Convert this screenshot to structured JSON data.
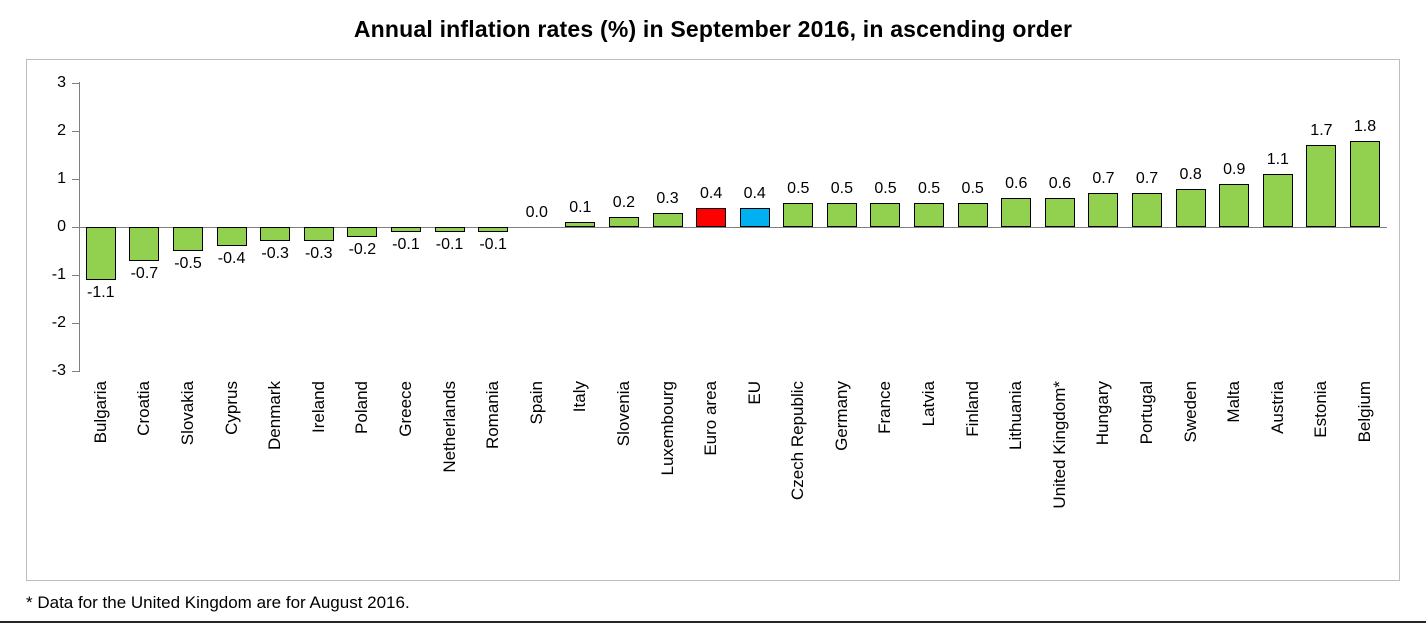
{
  "chart_data": {
    "type": "bar",
    "title": "Annual inflation rates (%) in September 2016, in ascending order",
    "categories": [
      "Bulgaria",
      "Croatia",
      "Slovakia",
      "Cyprus",
      "Denmark",
      "Ireland",
      "Poland",
      "Greece",
      "Netherlands",
      "Romania",
      "Spain",
      "Italy",
      "Slovenia",
      "Luxembourg",
      "Euro area",
      "EU",
      "Czech Republic",
      "Germany",
      "France",
      "Latvia",
      "Finland",
      "Lithuania",
      "United Kingdom*",
      "Hungary",
      "Portugal",
      "Sweden",
      "Malta",
      "Austria",
      "Estonia",
      "Belgium"
    ],
    "values": [
      -1.1,
      -0.7,
      -0.5,
      -0.4,
      -0.3,
      -0.3,
      -0.2,
      -0.1,
      -0.1,
      -0.1,
      0.0,
      0.1,
      0.2,
      0.3,
      0.4,
      0.4,
      0.5,
      0.5,
      0.5,
      0.5,
      0.5,
      0.6,
      0.6,
      0.7,
      0.7,
      0.8,
      0.9,
      1.1,
      1.7,
      1.8
    ],
    "bar_colors": {
      "default": "#92d050",
      "Euro area": "#ff0000",
      "EU": "#00b0f0"
    },
    "axis_color": "#7f7f7f",
    "bar_border_color": "#000000",
    "xlabel": "",
    "ylabel": "",
    "ylim": [
      -3,
      3
    ],
    "yticks": [
      3,
      2,
      1,
      0,
      -1,
      -2,
      -3
    ],
    "grid": false,
    "legend": "none",
    "footnote": "* Data for the United Kingdom are for August 2016."
  }
}
